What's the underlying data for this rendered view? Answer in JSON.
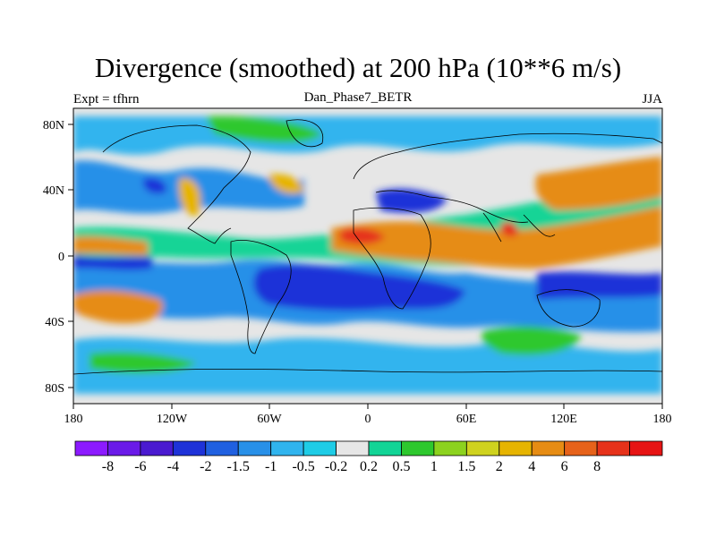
{
  "title": "Divergence (smoothed) at 200 hPa (10**6 m/s)",
  "subtitle_left": "Expt = tfhrn",
  "subtitle_center": "Dan_Phase7_BETR",
  "subtitle_right": "JJA",
  "lon_labels": [
    "180",
    "120W",
    "60W",
    "0",
    "60E",
    "120E",
    "180"
  ],
  "lat_labels": [
    "80N",
    "40N",
    "0",
    "40S",
    "80S"
  ],
  "colorbar": {
    "colors": [
      "#8c1aff",
      "#6a1ae8",
      "#4a1ad0",
      "#1e32d8",
      "#2060e0",
      "#2890e8",
      "#30b4ee",
      "#1ecce6",
      "#e6e6e6",
      "#12d496",
      "#2ec82e",
      "#8cd21e",
      "#cfd21e",
      "#e6b400",
      "#e68c14",
      "#e6621a",
      "#e6321a",
      "#e61414"
    ],
    "labels": [
      "-8",
      "-6",
      "-4",
      "-2",
      "-1.5",
      "-1",
      "-0.5",
      "-0.2",
      "0.2",
      "0.5",
      "1",
      "1.5",
      "2",
      "4",
      "6",
      "8"
    ]
  }
}
